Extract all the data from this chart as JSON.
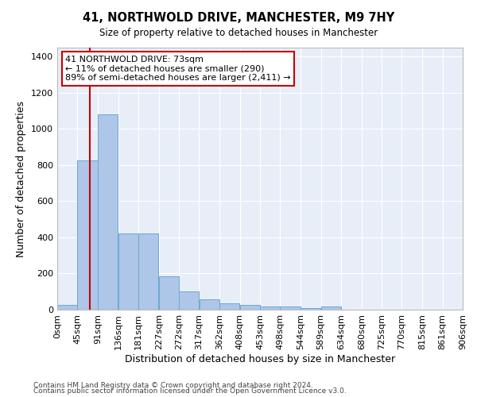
{
  "title": "41, NORTHWOLD DRIVE, MANCHESTER, M9 7HY",
  "subtitle": "Size of property relative to detached houses in Manchester",
  "xlabel": "Distribution of detached houses by size in Manchester",
  "ylabel": "Number of detached properties",
  "bar_color": "#aec6e8",
  "bar_edge_color": "#6aaad4",
  "background_color": "#e8eef8",
  "grid_color": "#ffffff",
  "red_line_x": 73,
  "annotation_line1": "41 NORTHWOLD DRIVE: 73sqm",
  "annotation_line2": "← 11% of detached houses are smaller (290)",
  "annotation_line3": "89% of semi-detached houses are larger (2,411) →",
  "annotation_box_color": "#ffffff",
  "annotation_box_edge": "#cc0000",
  "footer1": "Contains HM Land Registry data © Crown copyright and database right 2024.",
  "footer2": "Contains public sector information licensed under the Open Government Licence v3.0.",
  "bin_edges": [
    0,
    45,
    91,
    136,
    181,
    227,
    272,
    317,
    362,
    408,
    453,
    498,
    544,
    589,
    634,
    680,
    725,
    770,
    815,
    861,
    906
  ],
  "bin_counts": [
    28,
    825,
    1080,
    420,
    420,
    183,
    103,
    57,
    33,
    28,
    16,
    16,
    7,
    16,
    0,
    0,
    0,
    0,
    0,
    0
  ],
  "ylim": [
    0,
    1450
  ],
  "yticks": [
    0,
    200,
    400,
    600,
    800,
    1000,
    1200,
    1400
  ]
}
